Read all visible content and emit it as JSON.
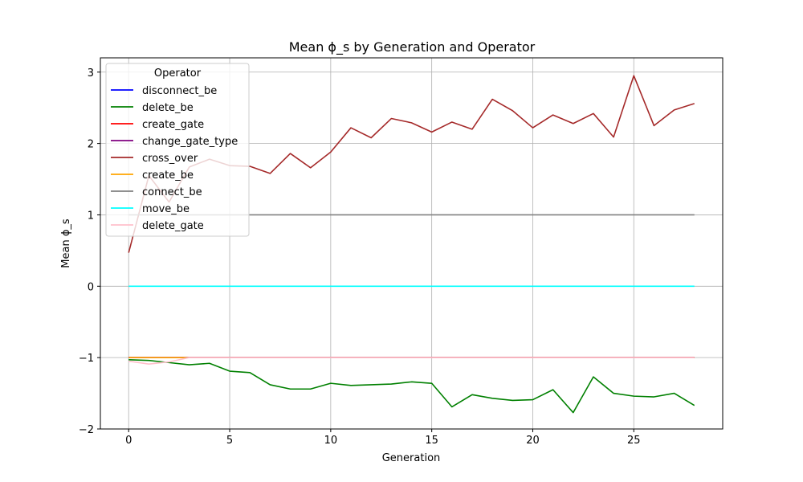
{
  "chart_data": {
    "type": "line",
    "title": "Mean ϕ_s by Generation and Operator",
    "xlabel": "Generation",
    "ylabel": "Mean ϕ_s",
    "xlim": [
      -1.4,
      29.4
    ],
    "ylim": [
      -2,
      3.2
    ],
    "xticks": [
      0,
      5,
      10,
      15,
      20,
      25
    ],
    "yticks": [
      -2,
      -1,
      0,
      1,
      2,
      3
    ],
    "grid": true,
    "legend": {
      "title": "Operator",
      "position": "upper-left"
    },
    "x": [
      0,
      1,
      2,
      3,
      4,
      5,
      6,
      7,
      8,
      9,
      10,
      11,
      12,
      13,
      14,
      15,
      16,
      17,
      18,
      19,
      20,
      21,
      22,
      23,
      24,
      25,
      26,
      27,
      28
    ],
    "series": [
      {
        "name": "disconnect_be",
        "color": "#0000ff",
        "values": [
          -1.0,
          -1.0,
          -1.0,
          -1.0,
          -1.0,
          -1.0,
          -1.0,
          -1.0,
          -1.0,
          -1.0,
          -1.0,
          -1.0,
          -1.0,
          -1.0,
          -1.0,
          -1.0,
          -1.0,
          -1.0,
          -1.0,
          -1.0,
          -1.0,
          -1.0,
          -1.0,
          -1.0,
          -1.0,
          -1.0,
          -1.0,
          -1.0,
          -1.0
        ]
      },
      {
        "name": "delete_be",
        "color": "#008000",
        "values": [
          -1.03,
          -1.04,
          -1.07,
          -1.1,
          -1.08,
          -1.19,
          -1.21,
          -1.38,
          -1.44,
          -1.44,
          -1.36,
          -1.39,
          -1.38,
          -1.37,
          -1.34,
          -1.36,
          -1.69,
          -1.52,
          -1.57,
          -1.6,
          -1.59,
          -1.45,
          -1.77,
          -1.27,
          -1.5,
          -1.54,
          -1.55,
          -1.5,
          -1.67
        ]
      },
      {
        "name": "create_gate",
        "color": "#ff0000",
        "values": [
          -1.0,
          -1.0,
          -1.0,
          -1.0,
          -1.0,
          -1.0,
          -1.0,
          -1.0,
          -1.0,
          -1.0,
          -1.0,
          -1.0,
          -1.0,
          -1.0,
          -1.0,
          -1.0,
          -1.0,
          -1.0,
          -1.0,
          -1.0,
          -1.0,
          -1.0,
          -1.0,
          -1.0,
          -1.0,
          -1.0,
          -1.0,
          -1.0,
          -1.0
        ]
      },
      {
        "name": "change_gate_type",
        "color": "#800080",
        "values": [
          -1.0,
          -1.0,
          -1.0,
          -1.0,
          -1.0,
          -1.0,
          -1.0,
          -1.0,
          -1.0,
          -1.0,
          -1.0,
          -1.0,
          -1.0,
          -1.0,
          -1.0,
          -1.0,
          -1.0,
          -1.0,
          -1.0,
          -1.0,
          -1.0,
          -1.0,
          -1.0,
          -1.0,
          -1.0,
          -1.0,
          -1.0,
          -1.0,
          -1.0
        ]
      },
      {
        "name": "cross_over",
        "color": "#a52a2a",
        "values": [
          0.47,
          1.55,
          1.18,
          1.67,
          1.78,
          1.69,
          1.68,
          1.58,
          1.86,
          1.66,
          1.88,
          2.22,
          2.08,
          2.35,
          2.29,
          2.16,
          2.3,
          2.2,
          2.62,
          2.46,
          2.22,
          2.4,
          2.28,
          2.42,
          2.09,
          2.95,
          2.25,
          2.47,
          2.56
        ]
      },
      {
        "name": "create_be",
        "color": "#ffa500",
        "values": [
          -1.0,
          -1.0,
          -1.0,
          -1.0,
          -1.0,
          -1.0,
          -1.0,
          -1.0,
          -1.0,
          -1.0,
          -1.0,
          -1.0,
          -1.0,
          -1.0,
          -1.0,
          -1.0,
          -1.0,
          -1.0,
          -1.0,
          -1.0,
          -1.0,
          -1.0,
          -1.0,
          -1.0,
          -1.0,
          -1.0,
          -1.0,
          -1.0,
          -1.0
        ]
      },
      {
        "name": "connect_be",
        "color": "#808080",
        "values": [
          1.0,
          1.0,
          1.0,
          1.0,
          1.0,
          1.0,
          1.0,
          1.0,
          1.0,
          1.0,
          1.0,
          1.0,
          1.0,
          1.0,
          1.0,
          1.0,
          1.0,
          1.0,
          1.0,
          1.0,
          1.0,
          1.0,
          1.0,
          1.0,
          1.0,
          1.0,
          1.0,
          1.0,
          1.0
        ]
      },
      {
        "name": "move_be",
        "color": "#00ffff",
        "values": [
          0,
          0,
          0,
          0,
          0,
          0,
          0,
          0,
          0,
          0,
          0,
          0,
          0,
          0,
          0,
          0,
          0,
          0,
          0,
          0,
          0,
          0,
          0,
          0,
          0,
          0,
          0,
          0,
          0
        ]
      },
      {
        "name": "delete_gate",
        "color": "#ffc0cb",
        "values": [
          -1.05,
          -1.09,
          -1.06,
          -1.0,
          -1.0,
          -1.0,
          -1.0,
          -1.0,
          -1.0,
          -1.0,
          -1.0,
          -1.0,
          -1.0,
          -1.0,
          -1.0,
          -1.0,
          -1.0,
          -1.0,
          -1.0,
          -1.0,
          -1.0,
          -1.0,
          -1.0,
          -1.0,
          -1.0,
          -1.0,
          -1.0,
          -1.0,
          -1.0
        ]
      }
    ]
  }
}
